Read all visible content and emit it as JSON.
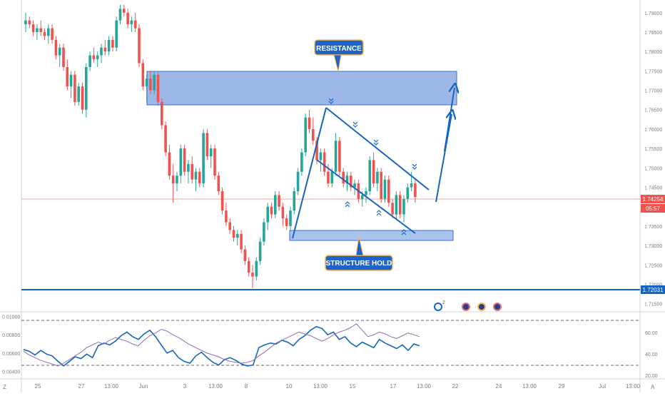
{
  "chart_data": {
    "type": "candlestick",
    "price_axis": {
      "ticks": [
        "1.79000",
        "1.78500",
        "1.78000",
        "1.77500",
        "1.77000",
        "1.76500",
        "1.76000",
        "1.75500",
        "1.75000",
        "1.74500",
        "1.74000",
        "1.73500",
        "1.73000",
        "1.72500",
        "1.72000",
        "1.71500"
      ],
      "range": [
        1.7131,
        1.7918
      ],
      "current_price": "1.74254",
      "countdown": "05:57",
      "level_label": "1.72031"
    },
    "time_axis": {
      "ticks": [
        "25",
        "27",
        "13:00",
        "Jun",
        "3",
        "13:00",
        "8",
        "10",
        "13:00",
        "15",
        "17",
        "13:00",
        "22",
        "24",
        "13:00",
        "29",
        "Jul",
        "13:00"
      ]
    },
    "annotations": {
      "resistance": "RESISTANCE",
      "structure": "STRUCTURE HOLD",
      "event_badge_count": "2"
    },
    "zones": {
      "resistance": [
        1.7741,
        1.7656
      ],
      "structure": [
        1.7348,
        1.7327
      ],
      "support_line": 1.72031
    },
    "candles": [
      [
        1.787,
        1.79,
        1.785,
        1.788
      ],
      [
        1.788,
        1.789,
        1.786,
        1.787
      ],
      [
        1.787,
        1.788,
        1.784,
        1.785
      ],
      [
        1.785,
        1.787,
        1.783,
        1.786
      ],
      [
        1.786,
        1.788,
        1.784,
        1.785
      ],
      [
        1.785,
        1.786,
        1.783,
        1.784
      ],
      [
        1.784,
        1.787,
        1.782,
        1.786
      ],
      [
        1.786,
        1.787,
        1.782,
        1.783
      ],
      [
        1.783,
        1.784,
        1.778,
        1.779
      ],
      [
        1.779,
        1.782,
        1.776,
        1.781
      ],
      [
        1.781,
        1.782,
        1.775,
        1.776
      ],
      [
        1.776,
        1.778,
        1.77,
        1.771
      ],
      [
        1.771,
        1.775,
        1.768,
        1.774
      ],
      [
        1.774,
        1.775,
        1.766,
        1.767
      ],
      [
        1.767,
        1.772,
        1.766,
        1.771
      ],
      [
        1.771,
        1.772,
        1.764,
        1.765
      ],
      [
        1.765,
        1.777,
        1.763,
        1.776
      ],
      [
        1.776,
        1.78,
        1.775,
        1.779
      ],
      [
        1.779,
        1.781,
        1.777,
        1.778
      ],
      [
        1.778,
        1.78,
        1.776,
        1.779
      ],
      [
        1.779,
        1.782,
        1.777,
        1.781
      ],
      [
        1.781,
        1.783,
        1.779,
        1.78
      ],
      [
        1.78,
        1.784,
        1.779,
        1.783
      ],
      [
        1.783,
        1.784,
        1.78,
        1.781
      ],
      [
        1.781,
        1.789,
        1.78,
        1.788
      ],
      [
        1.788,
        1.792,
        1.787,
        1.791
      ],
      [
        1.791,
        1.792,
        1.789,
        1.79
      ],
      [
        1.79,
        1.791,
        1.786,
        1.787
      ],
      [
        1.787,
        1.789,
        1.785,
        1.788
      ],
      [
        1.788,
        1.79,
        1.785,
        1.786
      ],
      [
        1.786,
        1.787,
        1.776,
        1.777
      ],
      [
        1.777,
        1.778,
        1.77,
        1.771
      ],
      [
        1.771,
        1.774,
        1.767,
        1.773
      ],
      [
        1.773,
        1.775,
        1.769,
        1.77
      ],
      [
        1.77,
        1.775,
        1.769,
        1.774
      ],
      [
        1.774,
        1.775,
        1.766,
        1.767
      ],
      [
        1.767,
        1.768,
        1.76,
        1.761
      ],
      [
        1.761,
        1.762,
        1.753,
        1.754
      ],
      [
        1.754,
        1.756,
        1.747,
        1.748
      ],
      [
        1.748,
        1.751,
        1.741,
        1.746
      ],
      [
        1.746,
        1.749,
        1.744,
        1.748
      ],
      [
        1.748,
        1.756,
        1.746,
        1.755
      ],
      [
        1.755,
        1.756,
        1.748,
        1.749
      ],
      [
        1.749,
        1.752,
        1.746,
        1.751
      ],
      [
        1.751,
        1.753,
        1.746,
        1.747
      ],
      [
        1.747,
        1.75,
        1.744,
        1.749
      ],
      [
        1.749,
        1.75,
        1.745,
        1.746
      ],
      [
        1.746,
        1.76,
        1.745,
        1.759
      ],
      [
        1.759,
        1.76,
        1.752,
        1.753
      ],
      [
        1.753,
        1.756,
        1.75,
        1.755
      ],
      [
        1.755,
        1.756,
        1.747,
        1.748
      ],
      [
        1.748,
        1.749,
        1.743,
        1.744
      ],
      [
        1.744,
        1.745,
        1.738,
        1.739
      ],
      [
        1.739,
        1.741,
        1.735,
        1.736
      ],
      [
        1.736,
        1.737,
        1.733,
        1.734
      ],
      [
        1.734,
        1.735,
        1.731,
        1.732
      ],
      [
        1.732,
        1.734,
        1.73,
        1.733
      ],
      [
        1.733,
        1.734,
        1.728,
        1.729
      ],
      [
        1.729,
        1.73,
        1.725,
        1.726
      ],
      [
        1.726,
        1.727,
        1.722,
        1.723
      ],
      [
        1.723,
        1.725,
        1.719,
        1.722
      ],
      [
        1.722,
        1.727,
        1.721,
        1.726
      ],
      [
        1.726,
        1.732,
        1.725,
        1.731
      ],
      [
        1.731,
        1.737,
        1.73,
        1.736
      ],
      [
        1.736,
        1.741,
        1.734,
        1.74
      ],
      [
        1.74,
        1.741,
        1.737,
        1.738
      ],
      [
        1.738,
        1.744,
        1.737,
        1.743
      ],
      [
        1.743,
        1.744,
        1.739,
        1.74
      ],
      [
        1.74,
        1.741,
        1.735,
        1.737
      ],
      [
        1.737,
        1.738,
        1.734,
        1.735
      ],
      [
        1.735,
        1.74,
        1.734,
        1.739
      ],
      [
        1.739,
        1.745,
        1.738,
        1.744
      ],
      [
        1.744,
        1.75,
        1.743,
        1.749
      ],
      [
        1.749,
        1.755,
        1.748,
        1.754
      ],
      [
        1.754,
        1.764,
        1.753,
        1.763
      ],
      [
        1.763,
        1.765,
        1.759,
        1.76
      ],
      [
        1.76,
        1.763,
        1.756,
        1.757
      ],
      [
        1.757,
        1.758,
        1.751,
        1.752
      ],
      [
        1.752,
        1.755,
        1.749,
        1.754
      ],
      [
        1.754,
        1.755,
        1.748,
        1.749
      ],
      [
        1.749,
        1.751,
        1.745,
        1.746
      ],
      [
        1.746,
        1.75,
        1.745,
        1.749
      ],
      [
        1.749,
        1.759,
        1.748,
        1.757
      ],
      [
        1.757,
        1.758,
        1.748,
        1.749
      ],
      [
        1.749,
        1.75,
        1.745,
        1.746
      ],
      [
        1.746,
        1.749,
        1.744,
        1.748
      ],
      [
        1.748,
        1.749,
        1.744,
        1.745
      ],
      [
        1.745,
        1.747,
        1.743,
        1.746
      ],
      [
        1.746,
        1.747,
        1.741,
        1.742
      ],
      [
        1.742,
        1.744,
        1.74,
        1.743
      ],
      [
        1.743,
        1.745,
        1.741,
        1.744
      ],
      [
        1.744,
        1.753,
        1.743,
        1.752
      ],
      [
        1.752,
        1.754,
        1.745,
        1.746
      ],
      [
        1.746,
        1.75,
        1.744,
        1.749
      ],
      [
        1.749,
        1.75,
        1.741,
        1.742
      ],
      [
        1.742,
        1.748,
        1.741,
        1.747
      ],
      [
        1.747,
        1.748,
        1.74,
        1.741
      ],
      [
        1.741,
        1.742,
        1.737,
        1.738
      ],
      [
        1.738,
        1.744,
        1.737,
        1.743
      ],
      [
        1.743,
        1.744,
        1.737,
        1.738
      ],
      [
        1.738,
        1.743,
        1.736,
        1.742
      ],
      [
        1.742,
        1.746,
        1.741,
        1.745
      ],
      [
        1.745,
        1.749,
        1.744,
        1.746
      ],
      [
        1.746,
        1.747,
        1.741,
        1.7425
      ]
    ],
    "oscillator": {
      "axis_ticks": [
        "0.01000",
        "0.00800",
        "0.00600",
        "0.00400"
      ],
      "right_ticks": [
        "60.00",
        "40.00",
        "20.00"
      ],
      "upper_level": 0.0092,
      "lower_level": 0.005,
      "series": [
        {
          "color": "#1565c0",
          "values": [
            0.0064,
            0.0062,
            0.0058,
            0.0063,
            0.0059,
            0.0057,
            0.0051,
            0.0046,
            0.0051,
            0.0056,
            0.0054,
            0.0059,
            0.0055,
            0.0068,
            0.0071,
            0.0069,
            0.0073,
            0.0079,
            0.0083,
            0.0078,
            0.0075,
            0.0081,
            0.0085,
            0.0078,
            0.0069,
            0.006,
            0.0063,
            0.0055,
            0.0051,
            0.0049,
            0.0057,
            0.0061,
            0.0055,
            0.005,
            0.0047,
            0.0053,
            0.0055,
            0.0052,
            0.0048,
            0.0046,
            0.0047,
            0.0066,
            0.0069,
            0.0071,
            0.007,
            0.0074,
            0.0072,
            0.0068,
            0.0075,
            0.0079,
            0.0085,
            0.0089,
            0.0087,
            0.008,
            0.0083,
            0.0075,
            0.0078,
            0.0071,
            0.0067,
            0.0072,
            0.0069,
            0.0066,
            0.0075,
            0.0071,
            0.0068,
            0.0065,
            0.0069,
            0.0063,
            0.007,
            0.0068
          ]
        },
        {
          "color": "#8e6bb8",
          "values": [
            0.0062,
            0.0058,
            0.0055,
            0.0052,
            0.005,
            0.0048,
            0.0046,
            0.0049,
            0.0053,
            0.0057,
            0.0061,
            0.0066,
            0.0069,
            0.0072,
            0.007,
            0.0074,
            0.0077,
            0.0075,
            0.0073,
            0.007,
            0.0068,
            0.0074,
            0.0079,
            0.0082,
            0.0086,
            0.0084,
            0.008,
            0.0077,
            0.0073,
            0.0069,
            0.0066,
            0.0063,
            0.006,
            0.0058,
            0.0056,
            0.0053,
            0.0051,
            0.005,
            0.0049,
            0.005,
            0.0052,
            0.0057,
            0.0061,
            0.0066,
            0.0071,
            0.0074,
            0.0077,
            0.008,
            0.0083,
            0.0081,
            0.0079,
            0.0076,
            0.0073,
            0.0076,
            0.008,
            0.0083,
            0.0085,
            0.0088,
            0.0092,
            0.0085,
            0.0078,
            0.008,
            0.0083,
            0.0081,
            0.0078,
            0.0076,
            0.0079,
            0.0082,
            0.008,
            0.0078
          ]
        }
      ]
    }
  }
}
